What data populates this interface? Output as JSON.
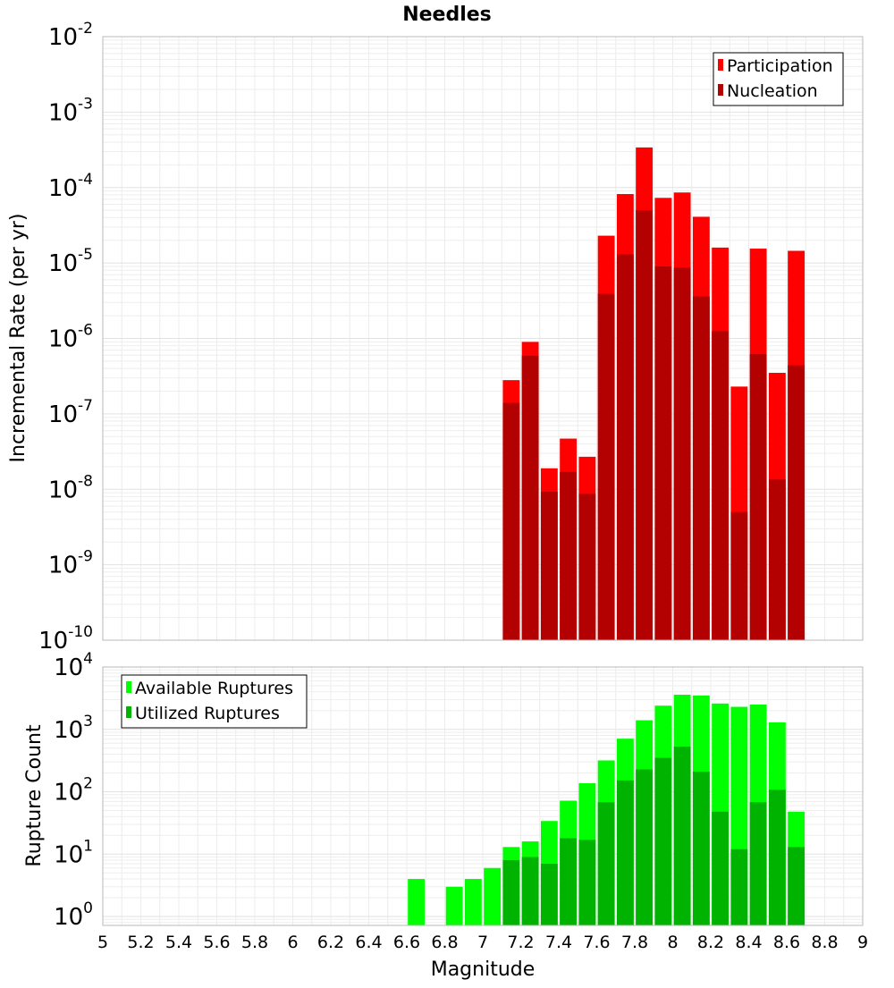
{
  "title": "Needles",
  "x_axis_label": "Magnitude",
  "x_ticks": [
    "5",
    "5.2",
    "5.4",
    "5.6",
    "5.8",
    "6",
    "6.2",
    "6.4",
    "6.6",
    "6.8",
    "7",
    "7.2",
    "7.4",
    "7.6",
    "7.8",
    "8",
    "8.2",
    "8.4",
    "8.6",
    "8.8",
    "9"
  ],
  "chart_data": [
    {
      "type": "bar",
      "name": "rate",
      "ylabel": "Incremental Rate (per yr)",
      "xlim": [
        5,
        9
      ],
      "ylim": [
        1e-10,
        0.01
      ],
      "y_scale": "log",
      "grid": true,
      "legend": "top-right",
      "y_tick_exponents": [
        "-2",
        "-3",
        "-4",
        "-5",
        "-6",
        "-7",
        "-8",
        "-9",
        "-10"
      ],
      "x": [
        7.15,
        7.25,
        7.35,
        7.45,
        7.55,
        7.65,
        7.75,
        7.85,
        7.95,
        8.05,
        8.15,
        8.25,
        8.35,
        8.45,
        8.55,
        8.65
      ],
      "series": [
        {
          "name": "Participation",
          "color": "#ff0000",
          "values": [
            2.8e-07,
            9e-07,
            1.9e-08,
            4.7e-08,
            2.7e-08,
            2.3e-05,
            8.2e-05,
            0.00034,
            7.3e-05,
            8.6e-05,
            4.1e-05,
            1.6e-05,
            2.3e-07,
            1.55e-05,
            3.5e-07,
            1.45e-05
          ]
        },
        {
          "name": "Nucleation",
          "color": "#b30000",
          "values": [
            1.4e-07,
            5.9e-07,
            9.3e-09,
            1.7e-08,
            8.7e-09,
            3.9e-06,
            1.3e-05,
            5e-05,
            9e-06,
            8.7e-06,
            3.6e-06,
            1.25e-06,
            5e-09,
            6.2e-07,
            1.35e-08,
            4.4e-07
          ]
        }
      ]
    },
    {
      "type": "bar",
      "name": "count",
      "ylabel": "Rupture Count",
      "xlim": [
        5,
        9
      ],
      "ylim": [
        0.72,
        10000.0
      ],
      "y_scale": "log",
      "grid": true,
      "legend": "top-left",
      "y_tick_exponents": [
        "4",
        "3",
        "2",
        "1",
        "0"
      ],
      "x": [
        6.65,
        6.75,
        6.85,
        6.95,
        7.05,
        7.15,
        7.25,
        7.35,
        7.45,
        7.55,
        7.65,
        7.75,
        7.85,
        7.95,
        8.05,
        8.15,
        8.25,
        8.35,
        8.45,
        8.55,
        8.65
      ],
      "series": [
        {
          "name": "Available Ruptures",
          "color": "#00ff00",
          "values": [
            4,
            0,
            3,
            4,
            6,
            13,
            16,
            34,
            72,
            137,
            318,
            710,
            1400,
            2400,
            3600,
            3500,
            2600,
            2300,
            2500,
            1300,
            48
          ]
        },
        {
          "name": "Utilized Ruptures",
          "color": "#00b300",
          "values": [
            0,
            0,
            0,
            0,
            0,
            8,
            9,
            7,
            18,
            17,
            68,
            152,
            228,
            350,
            530,
            210,
            48,
            12,
            68,
            108,
            13
          ]
        }
      ]
    }
  ]
}
